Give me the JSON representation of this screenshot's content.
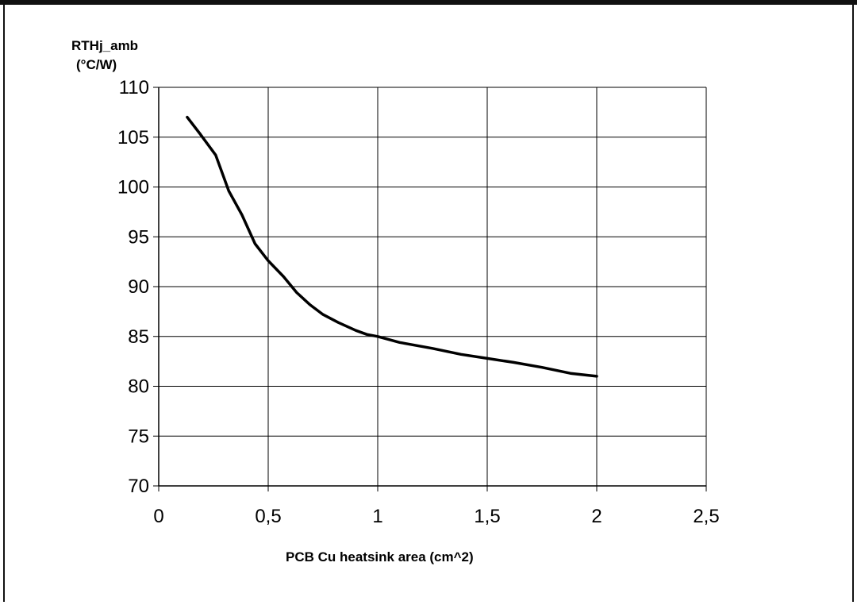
{
  "chart_data": {
    "type": "line",
    "ylabel_line1": "RTHj_amb",
    "ylabel_line2": "(°C/W)",
    "xlabel": "PCB Cu heatsink area (cm^2)",
    "xlim": [
      0,
      2.5
    ],
    "ylim": [
      70,
      110
    ],
    "x_ticks": [
      "0",
      "0,5",
      "1",
      "1,5",
      "2",
      "2,5"
    ],
    "x_tick_values": [
      0,
      0.5,
      1,
      1.5,
      2,
      2.5
    ],
    "y_ticks": [
      "70",
      "75",
      "80",
      "85",
      "90",
      "95",
      "100",
      "105",
      "110"
    ],
    "y_tick_values": [
      70,
      75,
      80,
      85,
      90,
      95,
      100,
      105,
      110
    ],
    "grid": true,
    "line_color": "#000000",
    "series": [
      {
        "x": [
          0.13,
          0.19,
          0.26,
          0.32,
          0.38,
          0.44,
          0.5,
          0.57,
          0.63,
          0.69,
          0.75,
          0.82,
          0.9,
          0.95,
          1.0,
          1.1,
          1.25,
          1.38,
          1.5,
          1.62,
          1.75,
          1.88,
          2.0
        ],
        "y": [
          107,
          105.3,
          103.2,
          99.6,
          97.2,
          94.3,
          92.6,
          91.0,
          89.4,
          88.2,
          87.2,
          86.4,
          85.6,
          85.2,
          85.0,
          84.4,
          83.8,
          83.2,
          82.8,
          82.4,
          81.9,
          81.3,
          81.0
        ]
      }
    ]
  }
}
